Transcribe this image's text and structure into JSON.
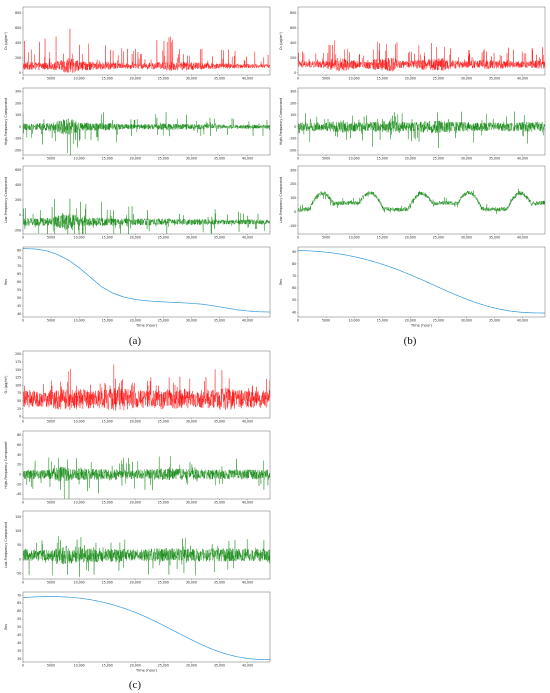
{
  "colors": {
    "raw": "#ff0000",
    "component": "#008000",
    "res": "#3399dd"
  },
  "captions": [
    "(a)",
    "(b)",
    "(c)"
  ],
  "chart_data": [
    {
      "id": "a",
      "type": "line",
      "caption": "(a)",
      "xlabel": "Time (hour)",
      "x_ticks": [
        "0",
        "5000",
        "10,000",
        "15,000",
        "20,000",
        "25,000",
        "30,000",
        "35,000",
        "40,000"
      ],
      "xlim": [
        0,
        44000
      ],
      "panels": [
        {
          "kind": "raw",
          "ylabel": "O₃ (μg/m³)",
          "y_ticks": [
            "0",
            "200",
            "400",
            "600",
            "800"
          ],
          "ylim": [
            -30,
            880
          ],
          "series": {
            "name": "",
            "color": "raw",
            "baseline": 90,
            "noise": 60,
            "spike": 420,
            "envelope": [
              [
                0,
                0.9
              ],
              [
                5000,
                0.8
              ],
              [
                7000,
                1.4
              ],
              [
                8500,
                1.9
              ],
              [
                10000,
                1.0
              ],
              [
                15000,
                0.8
              ],
              [
                20000,
                0.6
              ],
              [
                25000,
                0.9
              ],
              [
                27000,
                1.1
              ],
              [
                35000,
                0.6
              ],
              [
                40000,
                0.5
              ],
              [
                44000,
                0.4
              ]
            ]
          }
        },
        {
          "kind": "high",
          "ylabel": "High-Frequency Component",
          "y_ticks": [
            "-200",
            "-100",
            "0",
            "100",
            "200",
            "300"
          ],
          "ylim": [
            -240,
            330
          ],
          "series": {
            "name": "",
            "color": "component",
            "baseline": 0,
            "noise": 40,
            "spike": 170,
            "envelope": [
              [
                0,
                0.7
              ],
              [
                5000,
                0.8
              ],
              [
                7000,
                1.6
              ],
              [
                8500,
                1.8
              ],
              [
                10000,
                0.9
              ],
              [
                15000,
                0.8
              ],
              [
                20000,
                0.5
              ],
              [
                25000,
                0.7
              ],
              [
                35000,
                0.45
              ],
              [
                44000,
                0.4
              ]
            ]
          }
        },
        {
          "kind": "low",
          "ylabel": "Low-Frequency Component",
          "y_ticks": [
            "-200",
            "0",
            "200",
            "400",
            "600"
          ],
          "ylim": [
            -250,
            650
          ],
          "series": {
            "name": "",
            "color": "component",
            "baseline": -90,
            "noise": 70,
            "spike": 320,
            "envelope": [
              [
                0,
                0.7
              ],
              [
                5000,
                0.8
              ],
              [
                7000,
                1.5
              ],
              [
                8500,
                1.8
              ],
              [
                10000,
                0.9
              ],
              [
                15000,
                0.8
              ],
              [
                20000,
                0.6
              ],
              [
                25000,
                0.7
              ],
              [
                35000,
                0.5
              ],
              [
                44000,
                0.45
              ]
            ]
          }
        },
        {
          "kind": "res",
          "ylabel": "Res",
          "y_ticks": [
            "40",
            "45",
            "50",
            "55",
            "60",
            "65",
            "70",
            "75",
            "80"
          ],
          "ylim": [
            38,
            82
          ],
          "curve": [
            [
              0,
              81
            ],
            [
              2000,
              80.8
            ],
            [
              4000,
              79.8
            ],
            [
              6000,
              77.5
            ],
            [
              8000,
              74
            ],
            [
              10000,
              69
            ],
            [
              12000,
              63
            ],
            [
              14000,
              57
            ],
            [
              16000,
              53
            ],
            [
              18000,
              50.5
            ],
            [
              20000,
              49
            ],
            [
              22000,
              48.2
            ],
            [
              24000,
              47.7
            ],
            [
              26000,
              47.3
            ],
            [
              28000,
              47
            ],
            [
              30000,
              46.6
            ],
            [
              32000,
              46
            ],
            [
              34000,
              45
            ],
            [
              36000,
              43.8
            ],
            [
              38000,
              42.6
            ],
            [
              40000,
              41.8
            ],
            [
              42000,
              41.3
            ],
            [
              44000,
              41.1
            ]
          ]
        }
      ]
    },
    {
      "id": "b",
      "type": "line",
      "caption": "(b)",
      "xlabel": "Time (hour)",
      "x_ticks": [
        "0",
        "5000",
        "10,000",
        "15,000",
        "20,000",
        "25,000",
        "30,000",
        "35,000",
        "40,000"
      ],
      "xlim": [
        0,
        44000
      ],
      "panels": [
        {
          "kind": "raw",
          "ylabel": "O₃ (μg/m³)",
          "y_ticks": [
            "0",
            "200",
            "400",
            "600",
            "800"
          ],
          "ylim": [
            -30,
            880
          ],
          "series": {
            "name": "",
            "color": "raw",
            "baseline": 110,
            "noise": 70,
            "spike": 300,
            "envelope": [
              [
                0,
                0.7
              ],
              [
                4000,
                0.6
              ],
              [
                7000,
                1.3
              ],
              [
                9000,
                1.1
              ],
              [
                11000,
                0.6
              ],
              [
                14000,
                1.2
              ],
              [
                17000,
                1.3
              ],
              [
                19000,
                0.6
              ],
              [
                23000,
                1.1
              ],
              [
                26000,
                1.2
              ],
              [
                29000,
                0.6
              ],
              [
                33000,
                0.9
              ],
              [
                36000,
                0.8
              ],
              [
                40000,
                0.6
              ],
              [
                44000,
                0.9
              ]
            ]
          }
        },
        {
          "kind": "high",
          "ylabel": "High-Frequency Component",
          "y_ticks": [
            "-200",
            "-100",
            "0",
            "100",
            "200",
            "300"
          ],
          "ylim": [
            -240,
            330
          ],
          "series": {
            "name": "",
            "color": "component",
            "baseline": 0,
            "noise": 45,
            "spike": 140,
            "envelope": [
              [
                0,
                0.9
              ],
              [
                5000,
                0.8
              ],
              [
                8000,
                1.2
              ],
              [
                12000,
                0.8
              ],
              [
                16000,
                1.2
              ],
              [
                20000,
                0.8
              ],
              [
                24000,
                1.3
              ],
              [
                28000,
                0.9
              ],
              [
                34000,
                0.8
              ],
              [
                40000,
                0.9
              ],
              [
                44000,
                1.0
              ]
            ]
          }
        },
        {
          "kind": "low",
          "ylabel": "Low-Frequency Component",
          "y_ticks": [
            "-100",
            "0",
            "100",
            "200",
            "300"
          ],
          "ylim": [
            -160,
            330
          ],
          "series": {
            "name": "",
            "color": "component",
            "baseline": 0,
            "noise": 25,
            "spike": 60,
            "wave": true,
            "envelope": [
              [
                0,
                0.6
              ],
              [
                44000,
                0.6
              ]
            ]
          }
        },
        {
          "kind": "res",
          "ylabel": "Res",
          "y_ticks": [
            "40",
            "50",
            "60",
            "70",
            "80",
            "90"
          ],
          "ylim": [
            36,
            94
          ],
          "curve": [
            [
              0,
              91
            ],
            [
              2000,
              90.8
            ],
            [
              4000,
              90.2
            ],
            [
              6000,
              89.2
            ],
            [
              8000,
              87.8
            ],
            [
              10000,
              86
            ],
            [
              12000,
              83.8
            ],
            [
              14000,
              81.2
            ],
            [
              16000,
              78.2
            ],
            [
              18000,
              74.8
            ],
            [
              20000,
              71
            ],
            [
              22000,
              67
            ],
            [
              24000,
              62.8
            ],
            [
              26000,
              58.6
            ],
            [
              28000,
              54.6
            ],
            [
              30000,
              50.8
            ],
            [
              32000,
              47.4
            ],
            [
              34000,
              44.6
            ],
            [
              36000,
              42.4
            ],
            [
              38000,
              40.8
            ],
            [
              40000,
              39.8
            ],
            [
              42000,
              39.4
            ],
            [
              44000,
              39.3
            ]
          ]
        }
      ]
    },
    {
      "id": "c",
      "type": "line",
      "caption": "(c)",
      "xlabel": "Time (hour)",
      "x_ticks": [
        "0",
        "5000",
        "10,000",
        "15,000",
        "20,000",
        "25,000",
        "30,000",
        "35,000",
        "40,000"
      ],
      "xlim": [
        0,
        44000
      ],
      "panels": [
        {
          "kind": "raw",
          "ylabel": "O₃ (μg/m³)",
          "y_ticks": [
            "0",
            "25",
            "50",
            "75",
            "100",
            "125",
            "150",
            "175",
            "200"
          ],
          "ylim": [
            -5,
            210
          ],
          "series": {
            "name": "",
            "color": "raw",
            "baseline": 55,
            "noise": 30,
            "spike": 70,
            "envelope": [
              [
                0,
                0.9
              ],
              [
                4000,
                0.8
              ],
              [
                7000,
                1.2
              ],
              [
                10000,
                1.1
              ],
              [
                14000,
                1.0
              ],
              [
                17000,
                1.3
              ],
              [
                20000,
                0.9
              ],
              [
                25000,
                1.1
              ],
              [
                28000,
                1.0
              ],
              [
                32000,
                0.9
              ],
              [
                36000,
                1.2
              ],
              [
                40000,
                0.9
              ],
              [
                44000,
                1.0
              ]
            ]
          }
        },
        {
          "kind": "high",
          "ylabel": "High-Frequency Component",
          "y_ticks": [
            "-40",
            "-20",
            "0",
            "20",
            "40",
            "60",
            "80"
          ],
          "ylim": [
            -50,
            88
          ],
          "series": {
            "name": "",
            "color": "component",
            "baseline": 0,
            "noise": 12,
            "spike": 40,
            "envelope": [
              [
                0,
                0.8
              ],
              [
                5000,
                0.8
              ],
              [
                7000,
                1.4
              ],
              [
                9000,
                1.0
              ],
              [
                15000,
                0.9
              ],
              [
                20000,
                0.8
              ],
              [
                25000,
                1.0
              ],
              [
                35000,
                0.8
              ],
              [
                44000,
                0.9
              ]
            ]
          }
        },
        {
          "kind": "low",
          "ylabel": "Low-Frequency Component",
          "y_ticks": [
            "-50",
            "0",
            "50",
            "100",
            "150"
          ],
          "ylim": [
            -70,
            170
          ],
          "series": {
            "name": "",
            "color": "component",
            "baseline": 15,
            "noise": 25,
            "spike": 70,
            "envelope": [
              [
                0,
                0.9
              ],
              [
                5000,
                0.8
              ],
              [
                7000,
                1.4
              ],
              [
                9000,
                1.2
              ],
              [
                15000,
                1.0
              ],
              [
                20000,
                0.8
              ],
              [
                25000,
                1.0
              ],
              [
                30000,
                0.9
              ],
              [
                35000,
                1.0
              ],
              [
                40000,
                0.9
              ],
              [
                44000,
                1.0
              ]
            ]
          }
        },
        {
          "kind": "res",
          "ylabel": "Res",
          "y_ticks": [
            "30",
            "35",
            "40",
            "45",
            "50",
            "55",
            "60",
            "65",
            "70"
          ],
          "ylim": [
            28,
            72
          ],
          "curve": [
            [
              0,
              68.5
            ],
            [
              2000,
              68.9
            ],
            [
              4000,
              69.1
            ],
            [
              6000,
              69.1
            ],
            [
              8000,
              68.8
            ],
            [
              10000,
              68.2
            ],
            [
              12000,
              67.2
            ],
            [
              14000,
              65.8
            ],
            [
              16000,
              64
            ],
            [
              18000,
              61.8
            ],
            [
              20000,
              59.2
            ],
            [
              22000,
              56.2
            ],
            [
              24000,
              52.8
            ],
            [
              26000,
              49.2
            ],
            [
              28000,
              45.6
            ],
            [
              30000,
              42
            ],
            [
              32000,
              38.6
            ],
            [
              34000,
              35.6
            ],
            [
              36000,
              33.2
            ],
            [
              38000,
              31.4
            ],
            [
              40000,
              30.2
            ],
            [
              42000,
              29.6
            ],
            [
              44000,
              29.5
            ]
          ]
        }
      ]
    }
  ]
}
